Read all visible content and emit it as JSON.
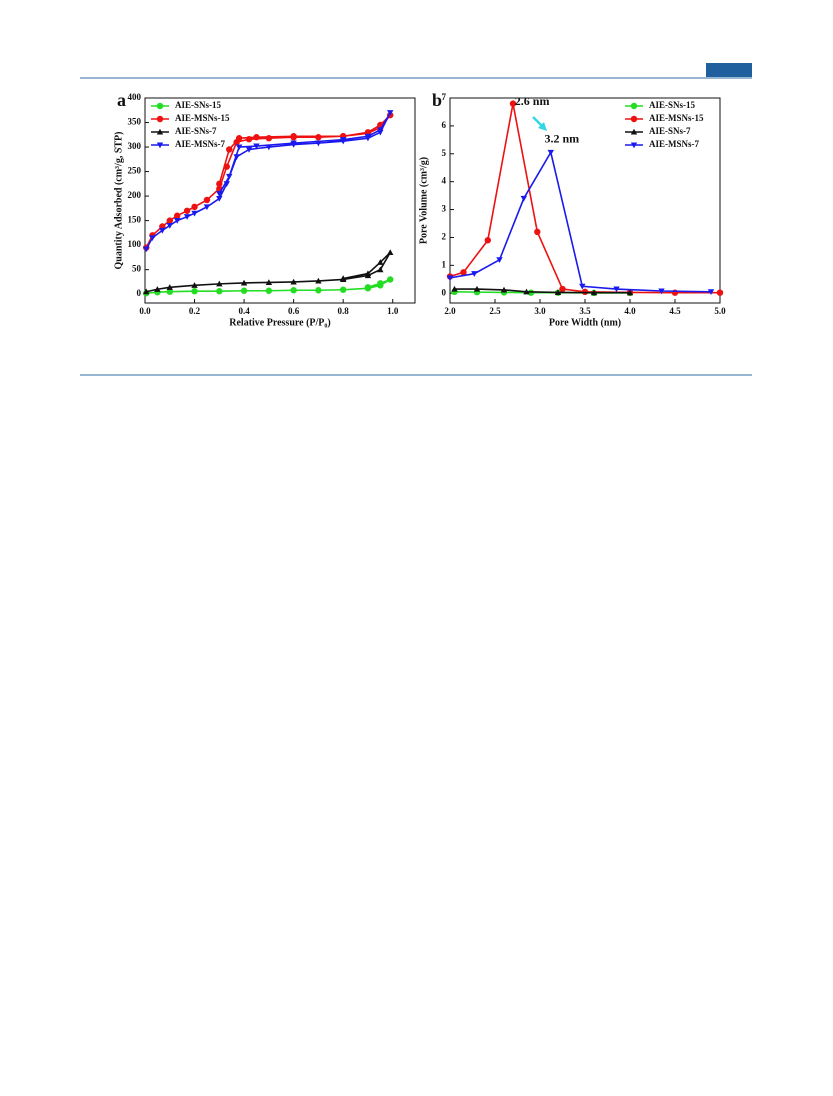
{
  "chart_data": [
    {
      "type": "line",
      "panel": "a",
      "x_label": "Relative Pressure (P/P₀)",
      "y_label": "Quantity Adsorbed (cm³/g, STP)",
      "xlim": [
        0,
        1.09
      ],
      "ylim": [
        -18,
        400
      ],
      "xticks": [
        {
          "value": 0,
          "label": "0.0"
        },
        0.2,
        0.4,
        0.6,
        0.8,
        {
          "value": 1,
          "label": "1.0"
        }
      ],
      "yticks": [
        0,
        50,
        100,
        150,
        200,
        250,
        300,
        350,
        400
      ],
      "legend": "upper left",
      "series": [
        {
          "name": "AIE-SNs-15",
          "color": "#22dd22",
          "marker": "circle",
          "x": [
            0.005,
            0.05,
            0.1,
            0.2,
            0.3,
            0.4,
            0.5,
            0.6,
            0.7,
            0.8,
            0.9,
            0.95,
            0.99,
            0.95,
            0.9
          ],
          "values": [
            2,
            4,
            5,
            6,
            6,
            7,
            7,
            8,
            8,
            9,
            12,
            18,
            30,
            22,
            14
          ]
        },
        {
          "name": "AIE-MSNs-15",
          "color": "#ee1111",
          "marker": "circle",
          "x": [
            0.005,
            0.03,
            0.07,
            0.1,
            0.13,
            0.17,
            0.2,
            0.25,
            0.3,
            0.33,
            0.37,
            0.42,
            0.5,
            0.6,
            0.7,
            0.8,
            0.9,
            0.95,
            0.99,
            0.95,
            0.9,
            0.8,
            0.6,
            0.45,
            0.38,
            0.34,
            0.3
          ],
          "values": [
            95,
            120,
            138,
            150,
            160,
            170,
            178,
            192,
            215,
            260,
            310,
            316,
            318,
            320,
            320,
            322,
            330,
            345,
            365,
            340,
            328,
            322,
            322,
            320,
            318,
            295,
            225
          ]
        },
        {
          "name": "AIE-SNs-7",
          "color": "#111111",
          "marker": "triangle",
          "x": [
            0.005,
            0.05,
            0.1,
            0.2,
            0.3,
            0.4,
            0.5,
            0.6,
            0.7,
            0.8,
            0.9,
            0.95,
            0.99,
            0.95,
            0.9,
            0.8
          ],
          "values": [
            5,
            10,
            14,
            18,
            21,
            23,
            24,
            25,
            27,
            30,
            38,
            50,
            85,
            65,
            42,
            32
          ]
        },
        {
          "name": "AIE-MSNs-7",
          "color": "#1a1aee",
          "marker": "down-triangle",
          "x": [
            0.005,
            0.03,
            0.07,
            0.1,
            0.13,
            0.17,
            0.2,
            0.25,
            0.3,
            0.33,
            0.37,
            0.42,
            0.5,
            0.6,
            0.7,
            0.8,
            0.9,
            0.95,
            0.99,
            0.95,
            0.9,
            0.8,
            0.6,
            0.45,
            0.38,
            0.34,
            0.3
          ],
          "values": [
            92,
            115,
            130,
            140,
            150,
            158,
            165,
            178,
            195,
            225,
            280,
            295,
            300,
            305,
            308,
            312,
            318,
            330,
            370,
            335,
            322,
            315,
            308,
            302,
            300,
            240,
            205
          ]
        }
      ]
    },
    {
      "type": "line",
      "panel": "b",
      "x_label": "Pore Width (nm)",
      "y_label": "Pore Volume (cm³/g)",
      "xlim": [
        2,
        5
      ],
      "ylim": [
        -0.35,
        7
      ],
      "xticks": [
        {
          "value": 2,
          "label": "2.0"
        },
        2.5,
        {
          "value": 3,
          "label": "3.0"
        },
        3.5,
        {
          "value": 4,
          "label": "4.0"
        },
        4.5,
        {
          "value": 5,
          "label": "5.0"
        }
      ],
      "yticks": [
        0,
        1,
        2,
        3,
        4,
        5,
        6,
        7
      ],
      "legend": "upper right",
      "annotations": [
        {
          "text": "2.6 nm",
          "x": 2.72,
          "y": 6.85
        },
        {
          "text": "3.2 nm",
          "x": 3.05,
          "y": 5.5
        }
      ],
      "series": [
        {
          "name": "AIE-SNs-15",
          "color": "#22dd22",
          "marker": "circle",
          "x": [
            2.05,
            2.3,
            2.6,
            2.9,
            3.2,
            3.6,
            4.0
          ],
          "values": [
            0.05,
            0.04,
            0.03,
            0.02,
            0.02,
            0.01,
            0.01
          ]
        },
        {
          "name": "AIE-MSNs-15",
          "color": "#ee1111",
          "marker": "circle",
          "x": [
            2.0,
            2.15,
            2.42,
            2.7,
            2.97,
            3.25,
            3.5,
            4.0,
            4.5,
            5.0
          ],
          "values": [
            0.6,
            0.75,
            1.9,
            6.8,
            2.2,
            0.15,
            0.05,
            0.03,
            0.02,
            0.02
          ]
        },
        {
          "name": "AIE-SNs-7",
          "color": "#111111",
          "marker": "triangle",
          "x": [
            2.05,
            2.3,
            2.6,
            2.85,
            3.2,
            3.6,
            4.0
          ],
          "values": [
            0.15,
            0.15,
            0.12,
            0.05,
            0.03,
            0.02,
            0.02
          ]
        },
        {
          "name": "AIE-MSNs-7",
          "color": "#1a1aee",
          "marker": "down-triangle",
          "x": [
            2.0,
            2.27,
            2.55,
            2.82,
            3.12,
            3.47,
            3.85,
            4.35,
            4.9
          ],
          "values": [
            0.55,
            0.7,
            1.2,
            3.4,
            5.05,
            0.25,
            0.15,
            0.08,
            0.05
          ]
        }
      ]
    }
  ]
}
